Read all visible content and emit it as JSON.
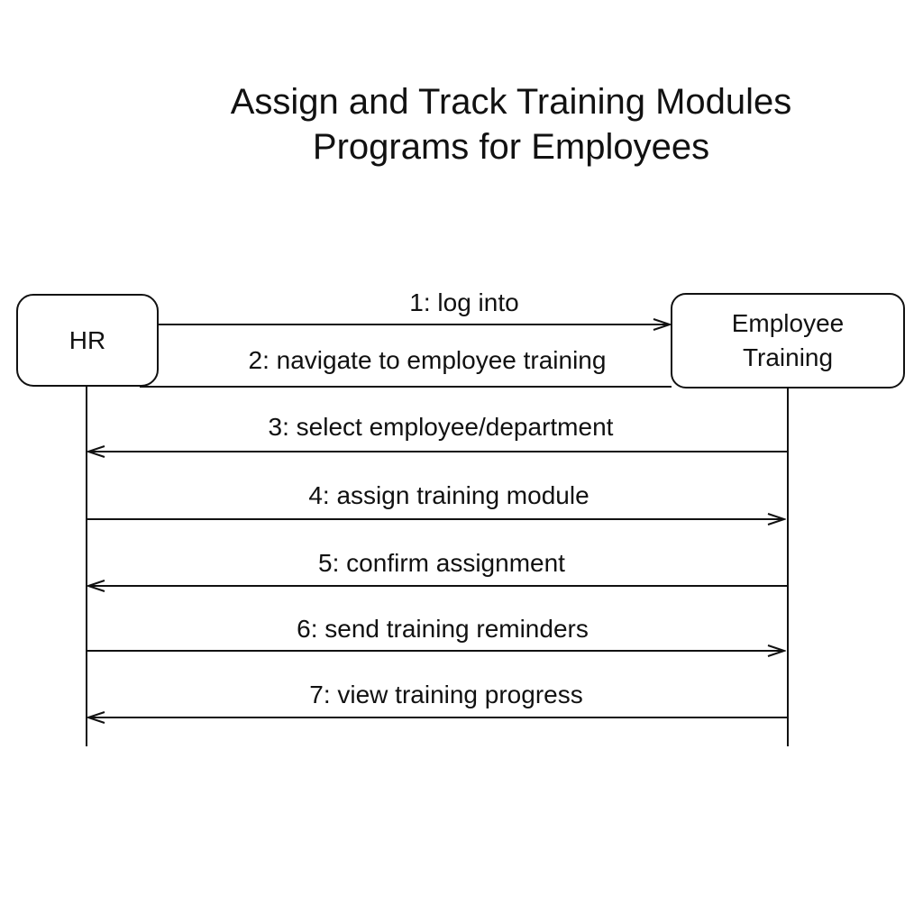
{
  "title": {
    "line1": "Assign and Track Training Modules",
    "line2": "Programs for Employees"
  },
  "participants": {
    "left": {
      "label": "HR"
    },
    "right": {
      "line1": "Employee",
      "line2": "Training"
    }
  },
  "messages": [
    {
      "label": "1: log into",
      "direction": "left-to-right"
    },
    {
      "label": "2: navigate to employee training",
      "direction": "none"
    },
    {
      "label": "3: select employee/department",
      "direction": "right-to-left"
    },
    {
      "label": "4: assign training module",
      "direction": "left-to-right"
    },
    {
      "label": "5: confirm assignment",
      "direction": "right-to-left"
    },
    {
      "label": "6: send training reminders",
      "direction": "left-to-right"
    },
    {
      "label": "7: view training progress",
      "direction": "right-to-left"
    }
  ]
}
